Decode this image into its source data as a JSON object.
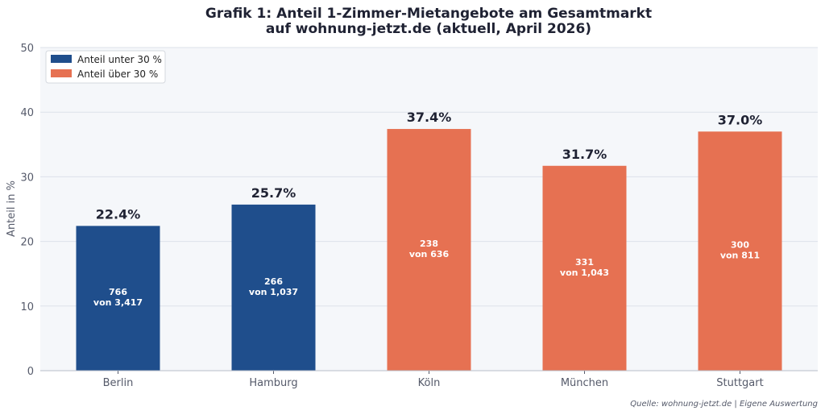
{
  "chart_data": {
    "type": "bar",
    "title": [
      "Grafik 1: Anteil 1-Zimmer-Mietangebote am Gesamtmarkt",
      "auf wohnung-jetzt.de (aktuell, April 2026)"
    ],
    "xlabel": "",
    "ylabel": "Anteil in %",
    "ylim": [
      0,
      50
    ],
    "yticks": [
      0,
      10,
      20,
      30,
      40,
      50
    ],
    "grid": true,
    "legend_placement": "top-left",
    "categories": [
      "Berlin",
      "Hamburg",
      "Köln",
      "München",
      "Stuttgart"
    ],
    "values": [
      22.4,
      25.7,
      37.4,
      31.7,
      37.0
    ],
    "value_labels": [
      "22.4%",
      "25.7%",
      "37.4%",
      "31.7%",
      "37.0%"
    ],
    "count_labels": [
      [
        "766",
        "von 3,417"
      ],
      [
        "266",
        "von 1,037"
      ],
      [
        "238",
        "von 636"
      ],
      [
        "331",
        "von 1,043"
      ],
      [
        "300",
        "von 811"
      ]
    ],
    "groups": [
      "under",
      "under",
      "over",
      "over",
      "over"
    ],
    "legend": [
      {
        "key": "under",
        "label": "Anteil unter 30 %",
        "color": "#1f4e8c"
      },
      {
        "key": "over",
        "label": "Anteil über 30 %",
        "color": "#e67152"
      }
    ],
    "source": "Quelle: wohnung-jetzt.de | Eigene Auswertung"
  },
  "colors": {
    "plot_background": "#f5f7fa",
    "grid": "#dde2ea"
  }
}
